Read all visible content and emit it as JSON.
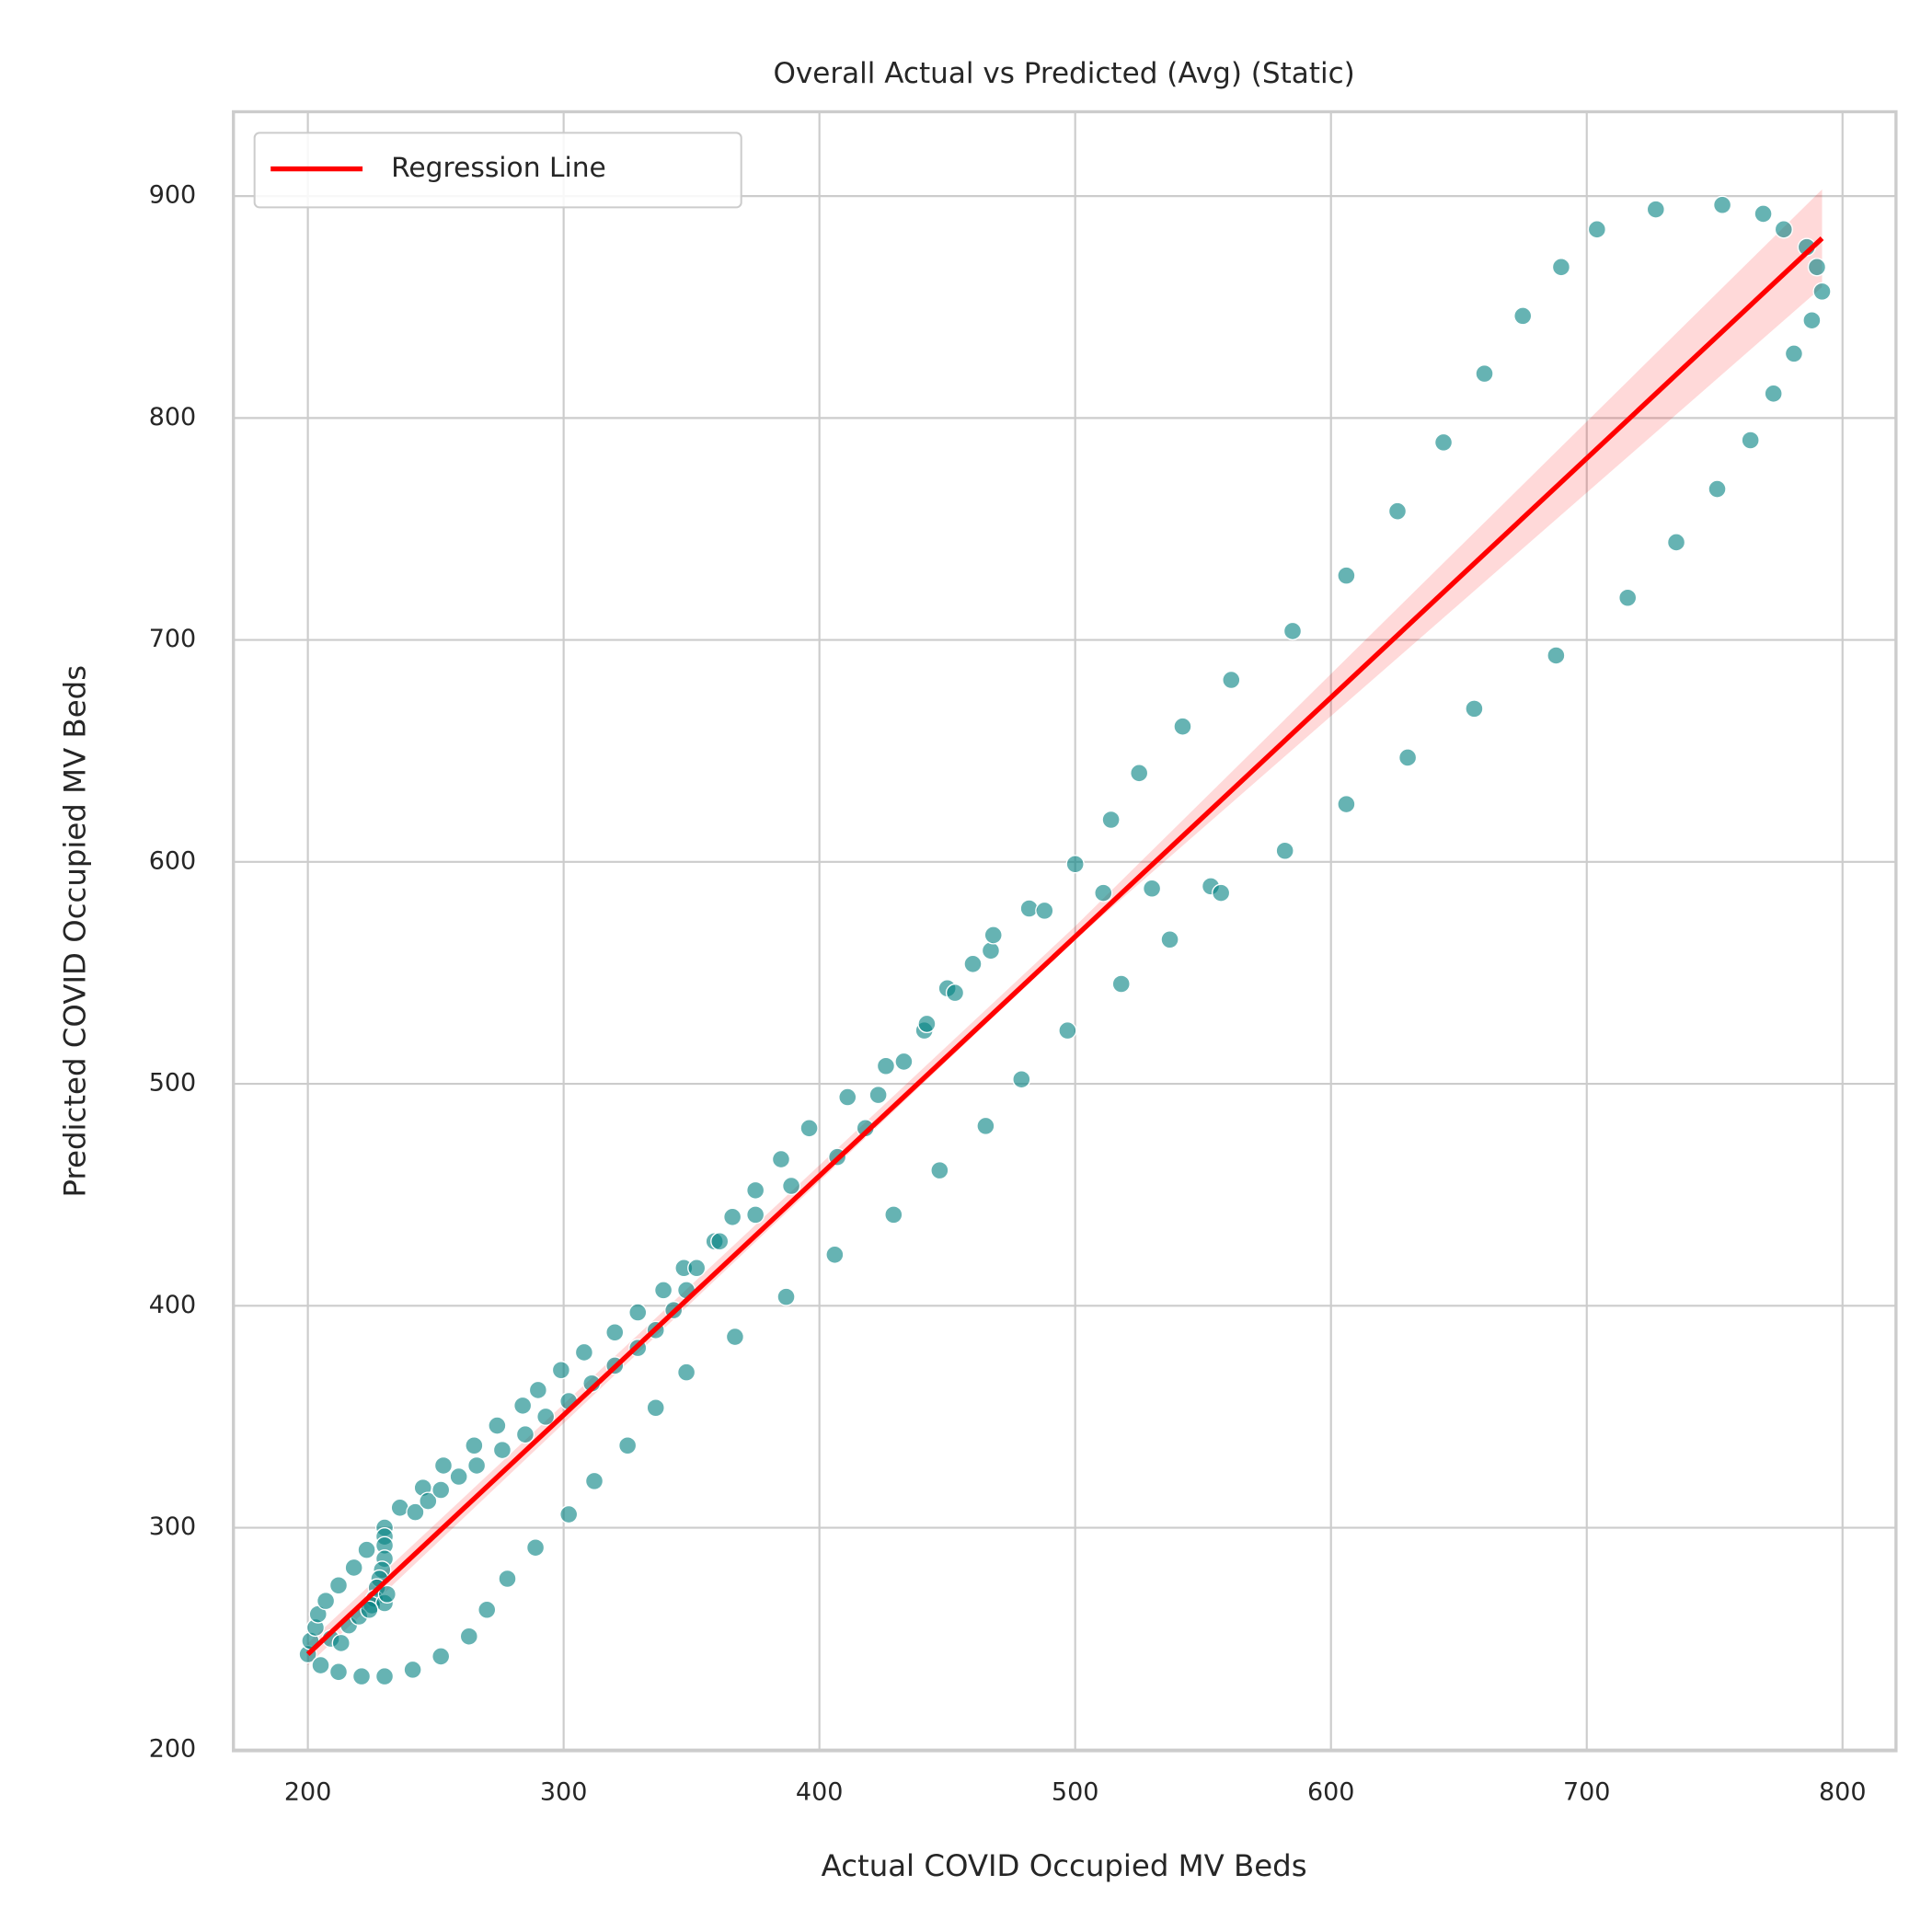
{
  "chart_data": {
    "type": "scatter",
    "title": "Overall Actual vs Predicted (Avg) (Static)",
    "xlabel": "Actual COVID Occupied MV Beds",
    "ylabel": "Predicted COVID Occupied MV Beds",
    "xlim": [
      170.9,
      820.9
    ],
    "ylim": [
      199.5,
      938
    ],
    "xticks": [
      200,
      300,
      400,
      500,
      600,
      700,
      800
    ],
    "yticks": [
      200,
      300,
      400,
      500,
      600,
      700,
      800,
      900
    ],
    "grid": true,
    "legend": "upper left",
    "points": {
      "color": "#008080",
      "x": [
        200,
        201,
        203,
        204,
        207,
        212,
        218,
        223,
        230,
        230,
        230,
        230,
        229,
        228,
        227,
        226,
        225,
        230,
        231,
        236,
        242,
        245,
        247,
        252,
        253,
        259,
        265,
        266,
        274,
        276,
        284,
        285,
        290,
        293,
        299,
        302,
        308,
        311,
        320,
        320,
        329,
        329,
        336,
        339,
        343,
        347,
        348,
        352,
        359,
        361,
        366,
        375,
        375,
        385,
        389,
        396,
        407,
        411,
        418,
        423,
        426,
        433,
        441,
        442,
        450,
        453,
        460,
        467,
        468,
        482,
        488,
        500,
        511,
        514,
        525,
        530,
        542,
        553,
        557,
        561,
        585,
        606,
        626,
        644,
        660,
        675,
        690,
        704,
        727,
        753,
        769,
        777,
        786,
        790,
        792,
        788,
        781,
        773,
        764,
        751,
        735,
        716,
        688,
        656,
        630,
        606,
        582,
        537,
        518,
        497,
        479,
        465,
        447,
        429,
        406,
        387,
        367,
        348,
        336,
        325,
        312,
        302,
        289,
        278,
        270,
        263,
        252,
        241,
        230,
        221,
        212,
        205,
        209,
        213,
        216,
        220,
        224
      ],
      "y": [
        243,
        249,
        255,
        261,
        267,
        274,
        282,
        290,
        300,
        296,
        292,
        286,
        281,
        277,
        273,
        268,
        265,
        266,
        270,
        309,
        307,
        318,
        312,
        317,
        328,
        323,
        337,
        328,
        346,
        335,
        355,
        342,
        362,
        350,
        371,
        357,
        379,
        365,
        388,
        373,
        397,
        381,
        389,
        407,
        398,
        417,
        407,
        417,
        429,
        429,
        440,
        452,
        441,
        466,
        454,
        480,
        467,
        494,
        480,
        495,
        508,
        510,
        524,
        527,
        543,
        541,
        554,
        560,
        567,
        579,
        578,
        599,
        586,
        619,
        640,
        588,
        661,
        589,
        586,
        682,
        704,
        729,
        758,
        789,
        820,
        846,
        868,
        885,
        894,
        896,
        892,
        885,
        877,
        868,
        857,
        844,
        829,
        811,
        790,
        768,
        744,
        719,
        693,
        669,
        647,
        626,
        605,
        565,
        545,
        524,
        502,
        481,
        461,
        441,
        423,
        404,
        386,
        370,
        354,
        337,
        321,
        306,
        291,
        277,
        263,
        251,
        242,
        236,
        233,
        233,
        235,
        238,
        250,
        248,
        256,
        260,
        263
      ]
    },
    "regression": {
      "name": "Regression Line",
      "color": "#ff0000",
      "x": [
        200,
        792
      ],
      "y": [
        243,
        881
      ],
      "ci_x": [
        200,
        500,
        792
      ],
      "ci_lower": [
        238,
        565,
        859
      ],
      "ci_upper": [
        248,
        571,
        903
      ]
    }
  }
}
